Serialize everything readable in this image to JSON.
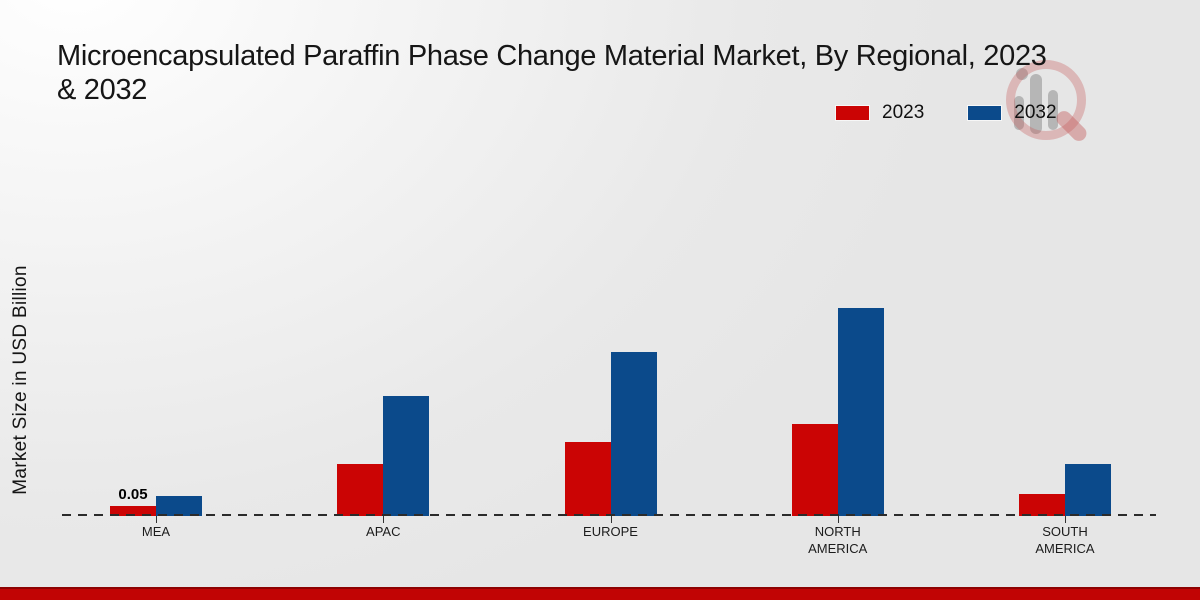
{
  "header": {
    "title_line1": "Microencapsulated Paraffin Phase Change Material Market, By Regional, 2023",
    "title_line2": "& 2032"
  },
  "legend": {
    "items": [
      {
        "label": "2023",
        "color": "#cb0404"
      },
      {
        "label": "2032",
        "color": "#0b4a8b"
      }
    ]
  },
  "y_axis": {
    "label": "Market Size in USD Billion"
  },
  "chart_data": {
    "type": "bar",
    "title": "Microencapsulated Paraffin Phase Change Material Market, By Regional, 2023 & 2032",
    "xlabel": "",
    "ylabel": "Market Size in USD Billion",
    "unit": "USD Billion",
    "categories": [
      "MEA",
      "APAC",
      "EUROPE",
      "NORTH AMERICA",
      "SOUTH AMERICA"
    ],
    "series": [
      {
        "name": "2023",
        "color": "#cb0404",
        "values": [
          0.05,
          0.26,
          0.37,
          0.46,
          0.11
        ]
      },
      {
        "name": "2032",
        "color": "#0b4a8b",
        "values": [
          0.1,
          0.6,
          0.82,
          1.04,
          0.26
        ]
      }
    ],
    "annotations": [
      {
        "category": "MEA",
        "series": "2023",
        "text": "0.05"
      }
    ],
    "ylim": [
      0,
      1.1
    ],
    "grid": false,
    "legend_position": "top-right",
    "baseline_style": "dashed"
  },
  "colors": {
    "footer_bar": "#c10404",
    "axis": "#2b2b2b"
  },
  "watermark": {
    "name": "market-research-future-logo"
  }
}
